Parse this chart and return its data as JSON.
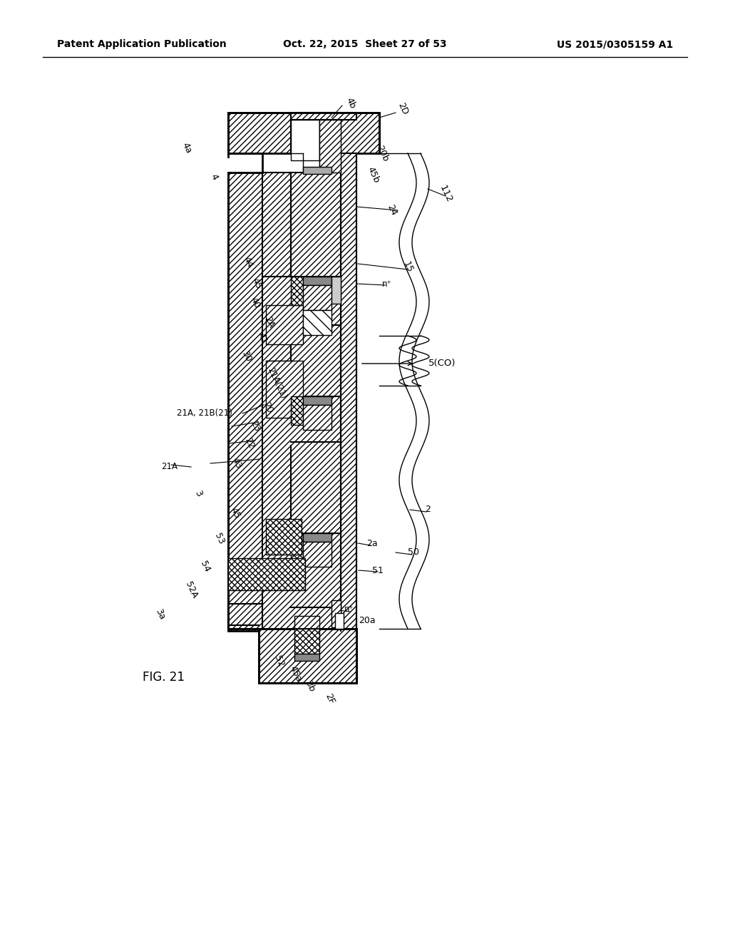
{
  "title_left": "Patent Application Publication",
  "title_center": "Oct. 22, 2015  Sheet 27 of 53",
  "title_right": "US 2015/0305159 A1",
  "fig_label": "FIG. 21",
  "background_color": "#ffffff"
}
